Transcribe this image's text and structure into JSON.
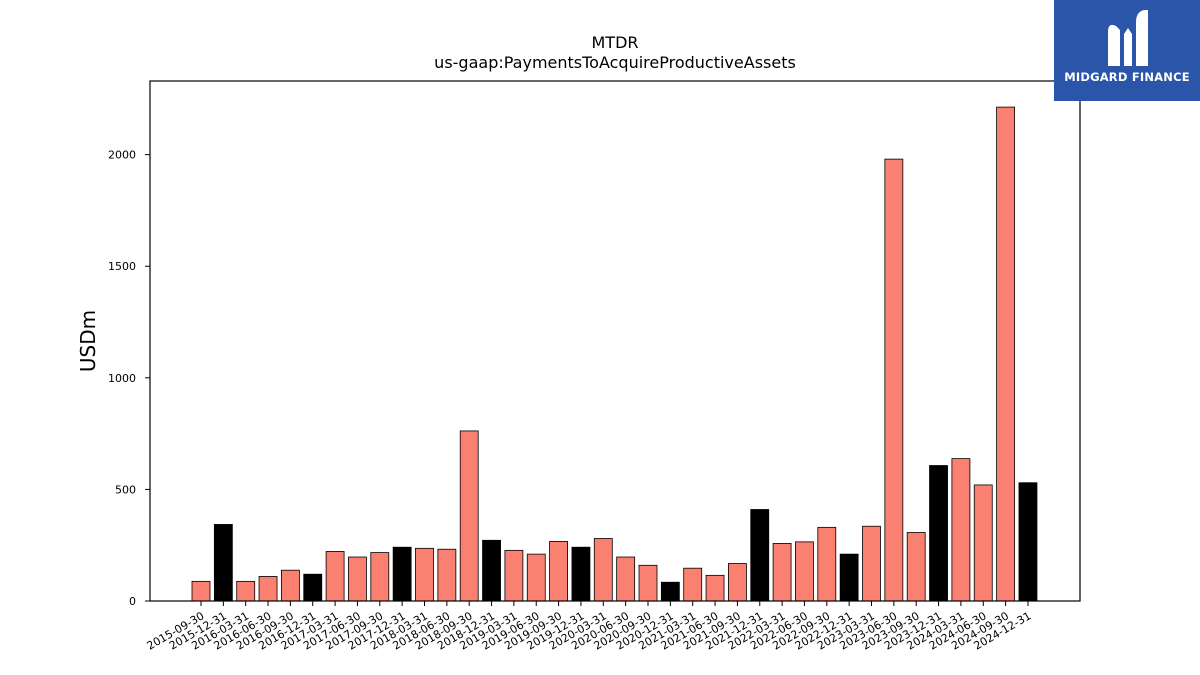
{
  "brand": {
    "name": "MIDGARD FINANCE",
    "bg_color": "#2a55a8"
  },
  "chart_data": {
    "type": "bar",
    "title": "MTDR",
    "subtitle": "us-gaap:PaymentsToAcquireProductiveAssets",
    "xlabel": "",
    "ylabel": "USDm",
    "ylim": [
      0,
      2330
    ],
    "yticks": [
      0,
      500,
      1000,
      1500,
      2000
    ],
    "grid": false,
    "categories": [
      "2015-09-30",
      "2015-12-31",
      "2016-03-31",
      "2016-06-30",
      "2016-09-30",
      "2016-12-31",
      "2017-03-31",
      "2017-06-30",
      "2017-09-30",
      "2017-12-31",
      "2018-03-31",
      "2018-06-30",
      "2018-09-30",
      "2018-12-31",
      "2019-03-31",
      "2019-06-30",
      "2019-09-30",
      "2019-12-31",
      "2020-03-31",
      "2020-06-30",
      "2020-09-30",
      "2020-12-31",
      "2021-03-31",
      "2021-06-30",
      "2021-09-30",
      "2021-12-31",
      "2022-03-31",
      "2022-06-30",
      "2022-09-30",
      "2022-12-31",
      "2023-03-31",
      "2023-06-30",
      "2023-09-30",
      "2023-12-31",
      "2024-03-31",
      "2024-06-30",
      "2024-09-30",
      "2024-12-31"
    ],
    "values": [
      88,
      343,
      88,
      110,
      138,
      120,
      222,
      197,
      217,
      241,
      236,
      232,
      762,
      272,
      227,
      210,
      267,
      241,
      280,
      197,
      160,
      84,
      147,
      115,
      168,
      410,
      258,
      265,
      330,
      210,
      335,
      1980,
      307,
      607,
      638,
      520,
      2213,
      530
    ],
    "colors": {
      "quarter": "#fa8072",
      "year_end": "#000000",
      "edge": "#000000"
    }
  }
}
